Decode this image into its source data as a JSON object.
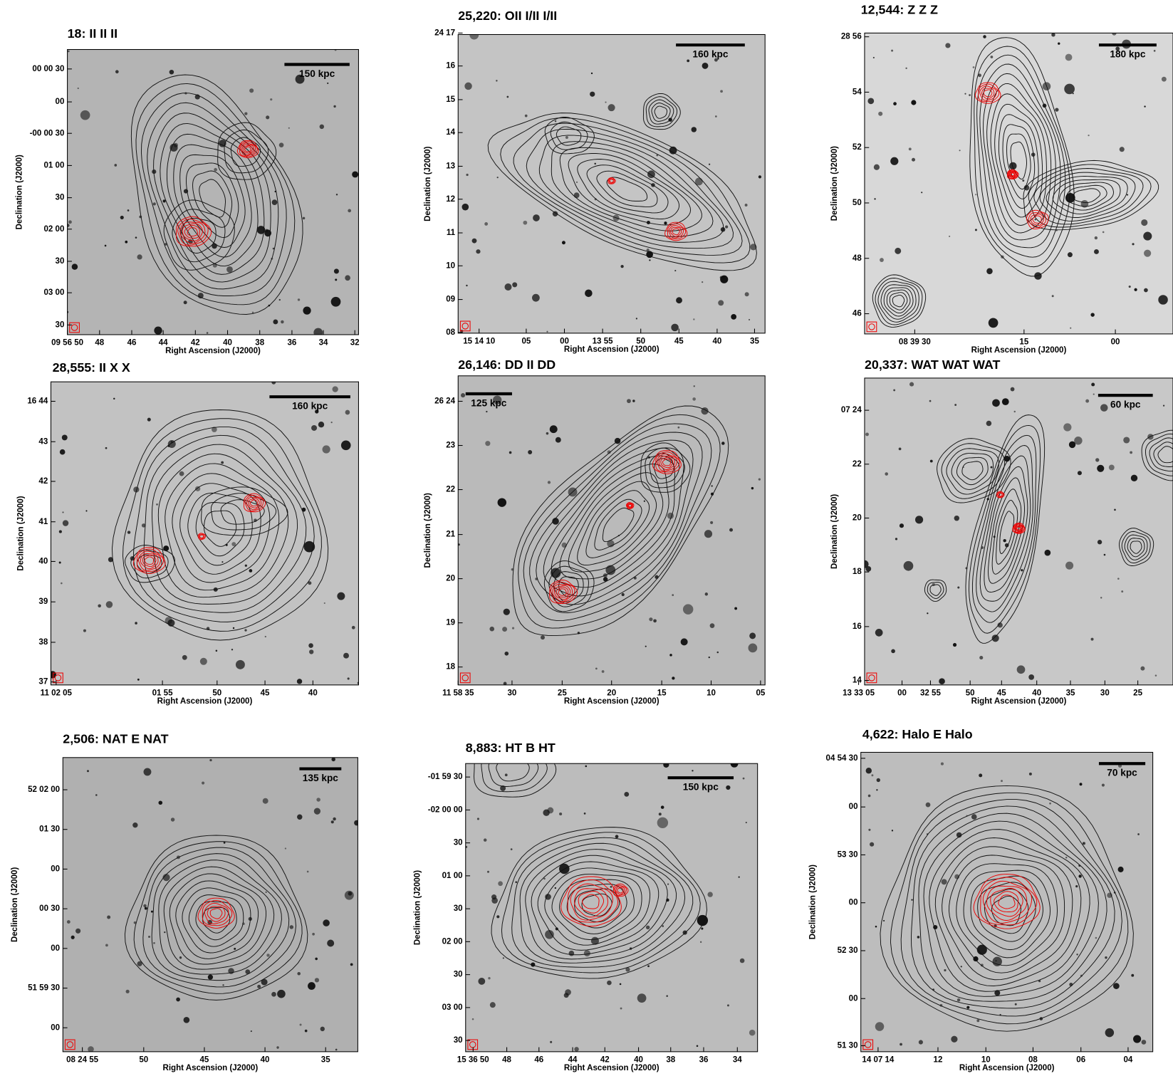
{
  "panels": [
    {
      "title": "18: II II II",
      "scale": "150 kpc",
      "yticks": [
        "00 00 30",
        "00",
        "-00 00 30",
        "01 00",
        "30",
        "02 00",
        "30",
        "03 00",
        "30"
      ],
      "xticks": [
        "09 56 50",
        "48",
        "46",
        "44",
        "42",
        "40",
        "38",
        "36",
        "34",
        "32"
      ],
      "xlabel": "Right Ascension (J2000)",
      "ylabel": "Declination (J2000)"
    },
    {
      "title": "25,220: OII I/II I/II",
      "scale": "160 kpc",
      "yticks": [
        "24 17",
        "16",
        "15",
        "14",
        "13",
        "12",
        "11",
        "10",
        "09",
        "08"
      ],
      "xticks": [
        "15 14 10",
        "05",
        "00",
        "13 55",
        "50",
        "45",
        "40",
        "35"
      ],
      "xlabel": "Right Ascension (J2000)",
      "ylabel": "Declination (J2000)"
    },
    {
      "title": "12,544: Z Z Z",
      "scale": "180 kpc",
      "yticks": [
        "28 56",
        "54",
        "52",
        "50",
        "48",
        "46"
      ],
      "xticks": [
        "08 39 30",
        "15",
        "00"
      ],
      "xlabel": "Right Ascension (J2000)",
      "ylabel": "Declination (J2000)"
    },
    {
      "title": "28,555: II X X",
      "scale": "160 kpc",
      "yticks": [
        "16 44",
        "43",
        "42",
        "41",
        "40",
        "39",
        "38",
        "37"
      ],
      "xticks": [
        "11 02 05",
        "01 55",
        "50",
        "45",
        "40"
      ],
      "xlabel": "Right Ascension (J2000)",
      "ylabel": "Declination (J2000)"
    },
    {
      "title": "26,146: DD II DD",
      "scale": "125 kpc",
      "yticks": [
        "26 24",
        "23",
        "22",
        "21",
        "20",
        "19",
        "18"
      ],
      "xticks": [
        "11 58 35",
        "30",
        "25",
        "20",
        "15",
        "10",
        "05"
      ],
      "xlabel": "Right Ascension (J2000)",
      "ylabel": "Declination (J2000)"
    },
    {
      "title": "20,337: WAT WAT WAT",
      "scale": "60 kpc",
      "yticks": [
        "07 24",
        "22",
        "20",
        "18",
        "16",
        "14"
      ],
      "xticks": [
        "13 33 05",
        "00",
        "32 55",
        "50",
        "45",
        "40",
        "35",
        "30",
        "25"
      ],
      "xlabel": "Right Ascension (J2000)",
      "ylabel": "Declination (J2000)"
    },
    {
      "title": "2,506: NAT E NAT",
      "scale": "135 kpc",
      "yticks": [
        "52 02 00",
        "01 30",
        "00",
        "00 30",
        "00",
        "51 59 30",
        "00"
      ],
      "xticks": [
        "08 24 55",
        "50",
        "45",
        "40",
        "35"
      ],
      "xlabel": "Right Ascension (J2000)",
      "ylabel": "Declination (J2000)"
    },
    {
      "title": "8,883: HT B HT",
      "scale": "150 kpc",
      "yticks": [
        "-01 59 30",
        "-02 00 00",
        "30",
        "01 00",
        "30",
        "02 00",
        "30",
        "03 00",
        "30"
      ],
      "xticks": [
        "15 36 50",
        "48",
        "46",
        "44",
        "42",
        "40",
        "38",
        "36",
        "34"
      ],
      "xlabel": "Right Ascension (J2000)",
      "ylabel": "Declination (J2000)"
    },
    {
      "title": "4,622: Halo E Halo",
      "scale": "70 kpc",
      "yticks": [
        "04 54 30",
        "00",
        "53 30",
        "00",
        "52 30",
        "00",
        "51 30"
      ],
      "xticks": [
        "14 07 14",
        "12",
        "10",
        "08",
        "06",
        "04"
      ],
      "xlabel": "Right Ascension (J2000)",
      "ylabel": "Declination (J2000)"
    }
  ]
}
